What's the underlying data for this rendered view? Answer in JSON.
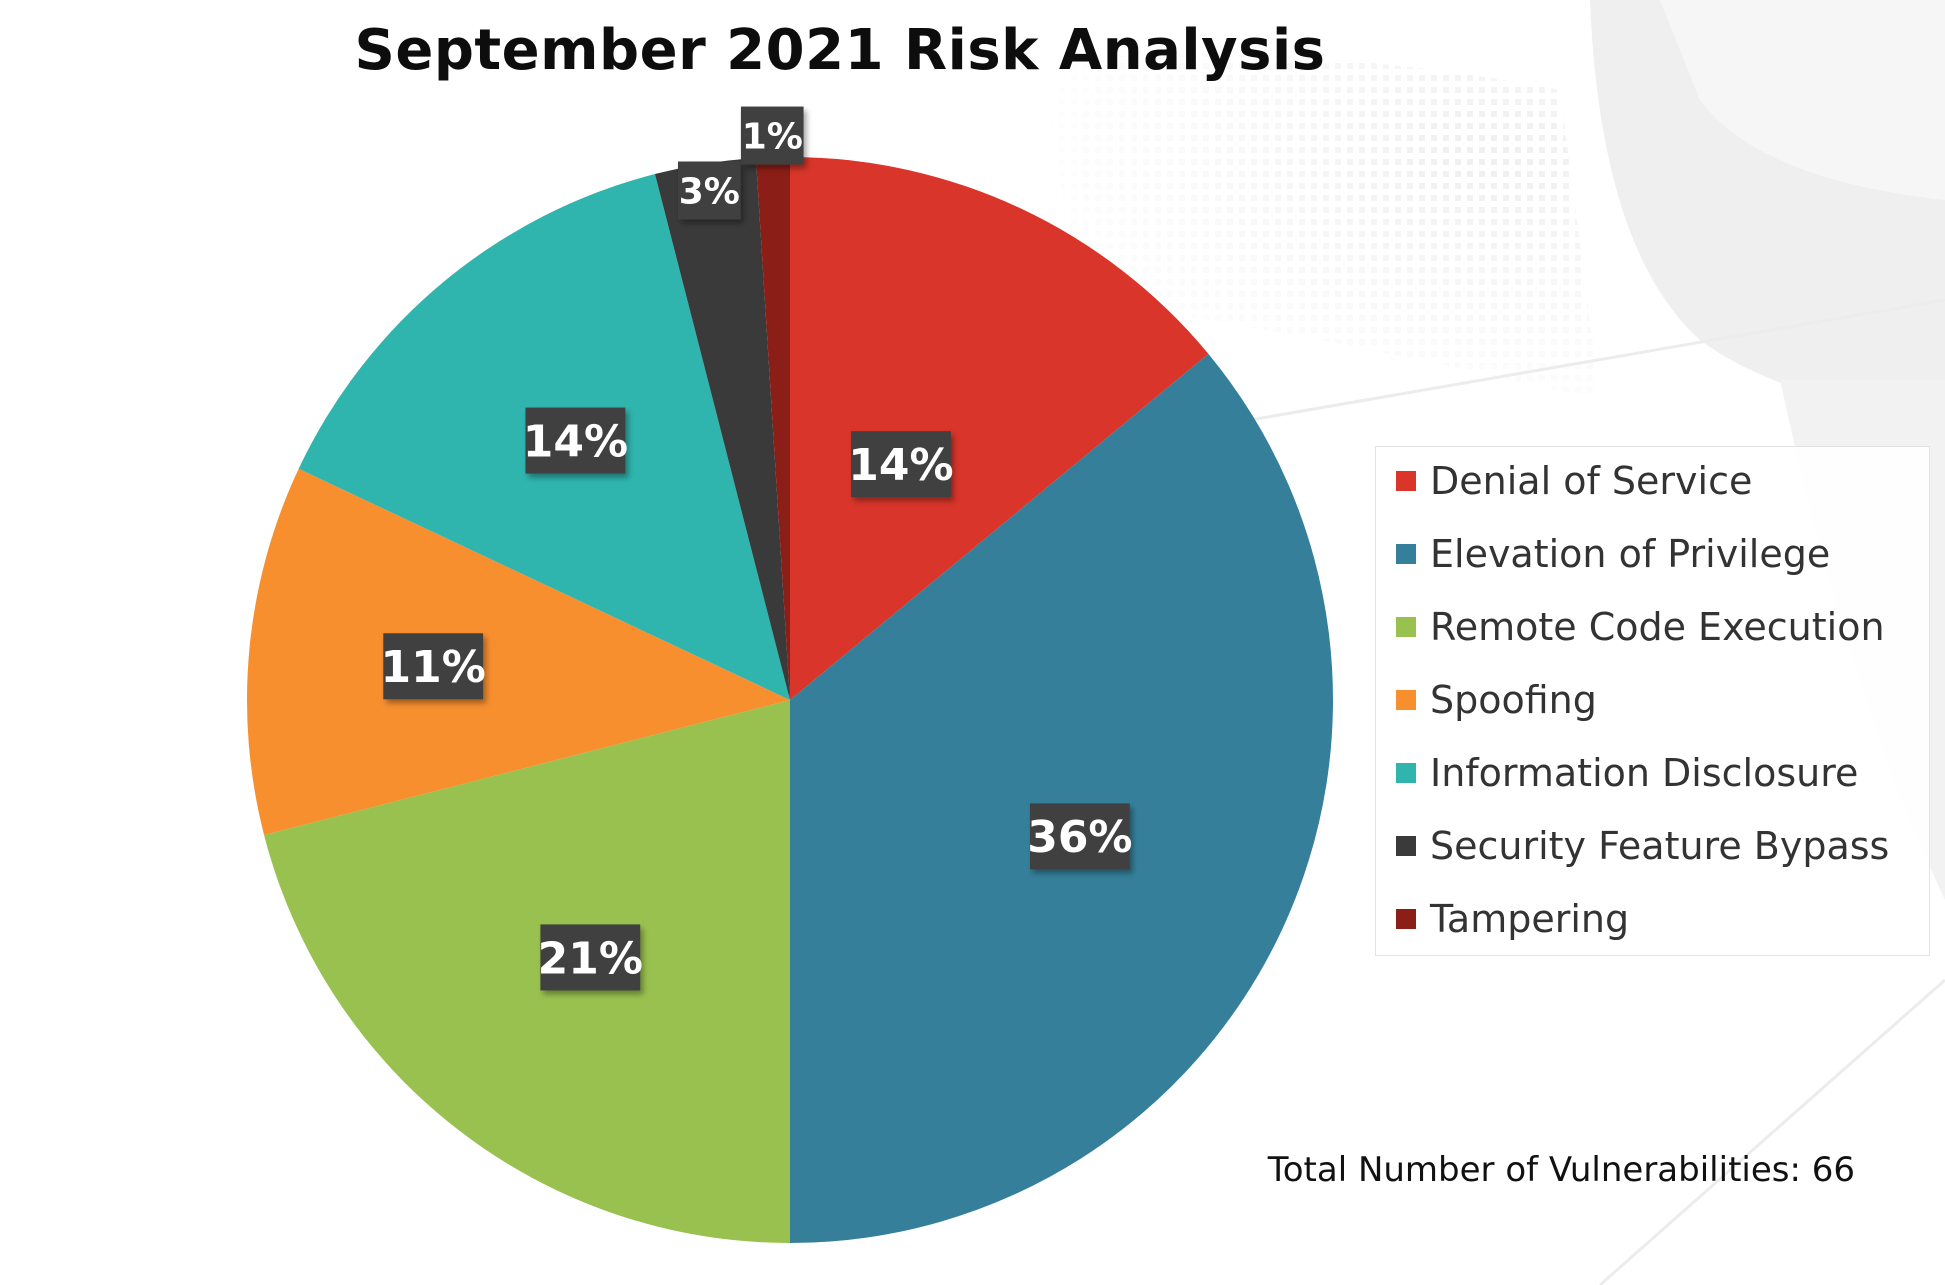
{
  "chart_data": {
    "type": "pie",
    "title": "September 2021 Risk Analysis",
    "slices": [
      {
        "label": "Denial of Service",
        "percent": 14,
        "color": "#d9352a"
      },
      {
        "label": "Elevation of Privilege",
        "percent": 36,
        "color": "#357f9a"
      },
      {
        "label": "Remote Code Execution",
        "percent": 21,
        "color": "#99c14f"
      },
      {
        "label": "Spoofing",
        "percent": 11,
        "color": "#f78f2f"
      },
      {
        "label": "Information Disclosure",
        "percent": 14,
        "color": "#2fb4ae"
      },
      {
        "label": "Security Feature Bypass",
        "percent": 3,
        "color": "#3a3a3a"
      },
      {
        "label": "Tampering",
        "percent": 1,
        "color": "#8b1e17"
      }
    ],
    "legend_position": "right",
    "data_labels": [
      "14%",
      "36%",
      "21%",
      "11%",
      "14%",
      "3%",
      "1%"
    ]
  },
  "legend": {
    "items": [
      "Denial of Service",
      "Elevation of Privilege",
      "Remote Code Execution",
      "Spoofing",
      "Information Disclosure",
      "Security Feature Bypass",
      "Tampering"
    ]
  },
  "footer": {
    "total_text": "Total Number of Vulnerabilities: 66"
  }
}
